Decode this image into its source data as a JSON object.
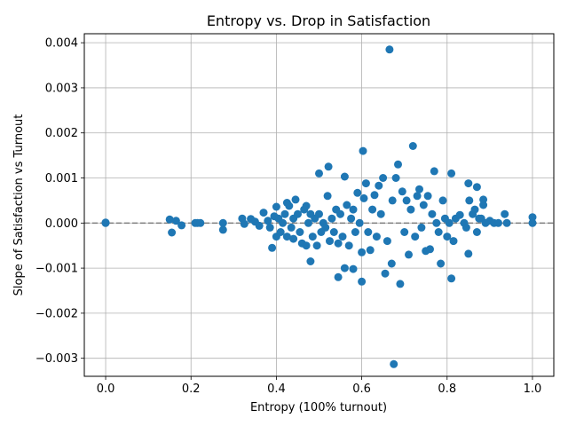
{
  "chart_data": {
    "type": "scatter",
    "title": "Entropy vs. Drop in Satisfaction",
    "xlabel": "Entropy (100% turnout)",
    "ylabel": "Slope of Satisfaction vs Turnout",
    "xlim": [
      -0.05,
      1.05
    ],
    "ylim": [
      -0.0034,
      0.0042
    ],
    "xticks": [
      0.0,
      0.2,
      0.4,
      0.6,
      0.8,
      1.0
    ],
    "xtick_labels": [
      "0.0",
      "0.2",
      "0.4",
      "0.6",
      "0.8",
      "1.0"
    ],
    "yticks": [
      -0.003,
      -0.002,
      -0.001,
      0.0,
      0.001,
      0.002,
      0.003,
      0.004
    ],
    "ytick_labels": [
      "−0.003",
      "−0.002",
      "−0.001",
      "0.000",
      "0.001",
      "0.002",
      "0.003",
      "0.004"
    ],
    "grid": true,
    "reference_line": {
      "y": 0.0,
      "style": "dashed",
      "color": "#808080"
    },
    "marker_color": "#1f77b4",
    "points": [
      [
        0.0,
        0.0
      ],
      [
        0.0,
        1e-05
      ],
      [
        0.15,
        8e-05
      ],
      [
        0.155,
        -0.00021
      ],
      [
        0.165,
        5e-05
      ],
      [
        0.178,
        -5e-05
      ],
      [
        0.21,
        0.0
      ],
      [
        0.215,
        0.0
      ],
      [
        0.222,
        0.0
      ],
      [
        0.275,
        -0.00015
      ],
      [
        0.275,
        0.0
      ],
      [
        0.32,
        0.0001
      ],
      [
        0.325,
        -2e-05
      ],
      [
        0.34,
        9e-05
      ],
      [
        0.35,
        3e-05
      ],
      [
        0.36,
        -6e-05
      ],
      [
        0.37,
        0.00023
      ],
      [
        0.38,
        5e-05
      ],
      [
        0.385,
        -0.0001
      ],
      [
        0.39,
        -0.00055
      ],
      [
        0.395,
        0.00015
      ],
      [
        0.4,
        -0.0003
      ],
      [
        0.4,
        0.00036
      ],
      [
        0.405,
        0.0001
      ],
      [
        0.41,
        -0.0002
      ],
      [
        0.415,
        0.0
      ],
      [
        0.42,
        0.0002
      ],
      [
        0.425,
        -0.0003
      ],
      [
        0.425,
        0.00045
      ],
      [
        0.43,
        0.00038
      ],
      [
        0.435,
        -0.0001
      ],
      [
        0.44,
        0.0001
      ],
      [
        0.44,
        -0.00035
      ],
      [
        0.445,
        0.00052
      ],
      [
        0.45,
        0.0002
      ],
      [
        0.455,
        -0.0002
      ],
      [
        0.46,
        -0.00045
      ],
      [
        0.465,
        0.0003
      ],
      [
        0.47,
        0.00038
      ],
      [
        0.47,
        -0.0005
      ],
      [
        0.475,
        0.0
      ],
      [
        0.48,
        -0.00085
      ],
      [
        0.48,
        0.0002
      ],
      [
        0.485,
        -0.0003
      ],
      [
        0.49,
        0.0001
      ],
      [
        0.495,
        -0.0005
      ],
      [
        0.5,
        0.0011
      ],
      [
        0.5,
        0.0002
      ],
      [
        0.505,
        -0.0002
      ],
      [
        0.51,
        0.0
      ],
      [
        0.515,
        -0.0001
      ],
      [
        0.52,
        0.0006
      ],
      [
        0.522,
        0.00125
      ],
      [
        0.525,
        -0.0004
      ],
      [
        0.53,
        0.0001
      ],
      [
        0.535,
        -0.0002
      ],
      [
        0.54,
        0.0003
      ],
      [
        0.545,
        -0.00045
      ],
      [
        0.545,
        -0.0012
      ],
      [
        0.55,
        0.0002
      ],
      [
        0.555,
        -0.0003
      ],
      [
        0.56,
        0.00103
      ],
      [
        0.56,
        -0.001
      ],
      [
        0.565,
        0.0004
      ],
      [
        0.57,
        -0.0005
      ],
      [
        0.575,
        0.0001
      ],
      [
        0.58,
        -0.00102
      ],
      [
        0.58,
        0.0003
      ],
      [
        0.585,
        -0.0002
      ],
      [
        0.59,
        0.00067
      ],
      [
        0.595,
        0.0
      ],
      [
        0.6,
        -0.00065
      ],
      [
        0.6,
        -0.0013
      ],
      [
        0.603,
        0.0016
      ],
      [
        0.605,
        0.00055
      ],
      [
        0.61,
        0.00088
      ],
      [
        0.615,
        -0.0002
      ],
      [
        0.62,
        -0.0006
      ],
      [
        0.625,
        0.0003
      ],
      [
        0.63,
        0.00062
      ],
      [
        0.635,
        -0.0003
      ],
      [
        0.64,
        0.00083
      ],
      [
        0.645,
        0.0002
      ],
      [
        0.65,
        0.001
      ],
      [
        0.655,
        -0.00112
      ],
      [
        0.66,
        -0.0004
      ],
      [
        0.665,
        0.00385
      ],
      [
        0.67,
        -0.0009
      ],
      [
        0.672,
        0.0005
      ],
      [
        0.675,
        -0.00313
      ],
      [
        0.68,
        0.001
      ],
      [
        0.685,
        0.0013
      ],
      [
        0.69,
        -0.00135
      ],
      [
        0.695,
        0.0007
      ],
      [
        0.7,
        -0.0002
      ],
      [
        0.705,
        0.0005
      ],
      [
        0.71,
        -0.0007
      ],
      [
        0.715,
        0.0003
      ],
      [
        0.72,
        0.00171
      ],
      [
        0.725,
        -0.0003
      ],
      [
        0.73,
        0.0006
      ],
      [
        0.735,
        0.00075
      ],
      [
        0.74,
        -0.0001
      ],
      [
        0.745,
        0.0004
      ],
      [
        0.75,
        -0.00062
      ],
      [
        0.755,
        0.0006
      ],
      [
        0.76,
        -0.00058
      ],
      [
        0.765,
        0.0002
      ],
      [
        0.77,
        0.00115
      ],
      [
        0.775,
        0.0
      ],
      [
        0.78,
        -0.0002
      ],
      [
        0.785,
        -0.0009
      ],
      [
        0.79,
        0.0005
      ],
      [
        0.795,
        0.0001
      ],
      [
        0.8,
        -0.0003
      ],
      [
        0.805,
        0.0
      ],
      [
        0.81,
        0.0011
      ],
      [
        0.81,
        -0.00123
      ],
      [
        0.815,
        -0.0004
      ],
      [
        0.82,
        0.0001
      ],
      [
        0.83,
        0.00018
      ],
      [
        0.84,
        0.0
      ],
      [
        0.845,
        -0.0001
      ],
      [
        0.85,
        0.00088
      ],
      [
        0.85,
        -0.00068
      ],
      [
        0.852,
        0.0005
      ],
      [
        0.86,
        0.0002
      ],
      [
        0.865,
        0.0003
      ],
      [
        0.87,
        0.0008
      ],
      [
        0.87,
        -0.0002
      ],
      [
        0.875,
        0.0001
      ],
      [
        0.88,
        0.0001
      ],
      [
        0.885,
        0.00052
      ],
      [
        0.885,
        0.0004
      ],
      [
        0.89,
        0.0
      ],
      [
        0.9,
        5e-05
      ],
      [
        0.91,
        0.0
      ],
      [
        0.92,
        0.0
      ],
      [
        0.935,
        0.0002
      ],
      [
        0.94,
        0.0
      ],
      [
        1.0,
        0.00013
      ],
      [
        1.0,
        0.0
      ]
    ]
  }
}
